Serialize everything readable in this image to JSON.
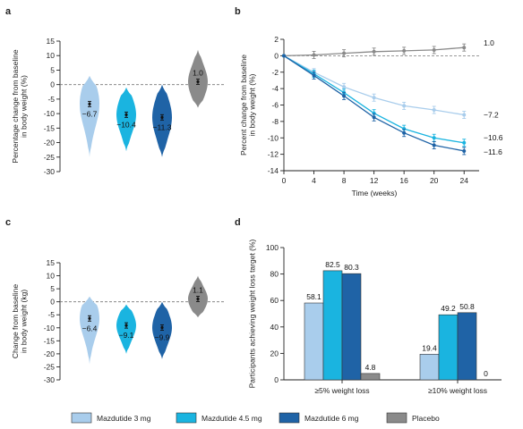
{
  "panels": {
    "a": "a",
    "b": "b",
    "c": "c",
    "d": "d"
  },
  "series": [
    {
      "name": "Mazdutide 3 mg",
      "color": "#a9cdec"
    },
    {
      "name": "Mazdutide 4.5 mg",
      "color": "#1ab4e0"
    },
    {
      "name": "Mazdutide 6 mg",
      "color": "#1f63a6"
    },
    {
      "name": "Placebo",
      "color": "#8a8a8a"
    }
  ],
  "chart_data": [
    {
      "id": "a",
      "type": "violin",
      "ylabel": "Percentage change from baseline in body weight (%)",
      "ylim": [
        -30,
        15
      ],
      "yticks": [
        15,
        10,
        5,
        0,
        -5,
        -10,
        -15,
        -20,
        -25,
        -30
      ],
      "reference_line": 0,
      "groups": [
        {
          "series": "Mazdutide 3 mg",
          "mean": -6.7,
          "label": "−6.7",
          "range": [
            -25,
            3
          ]
        },
        {
          "series": "Mazdutide 4.5 mg",
          "mean": -10.4,
          "label": "−10.4",
          "range": [
            -23,
            -1
          ]
        },
        {
          "series": "Mazdutide 6 mg",
          "mean": -11.3,
          "label": "−11.3",
          "range": [
            -25,
            0
          ]
        },
        {
          "series": "Placebo",
          "mean": 1.0,
          "label": "1.0",
          "range": [
            -8,
            12
          ]
        }
      ]
    },
    {
      "id": "b",
      "type": "line",
      "xlabel": "Time  (weeks)",
      "ylabel": "Percent change from baseline in body weight (%)",
      "x": [
        0,
        4,
        8,
        12,
        16,
        20,
        24
      ],
      "xlim": [
        0,
        26
      ],
      "ylim": [
        -14,
        2
      ],
      "yticks": [
        2,
        0,
        -2,
        -4,
        -6,
        -8,
        -10,
        -12,
        -14
      ],
      "reference_line": 0,
      "series": [
        {
          "series": "Placebo",
          "values": [
            0,
            0.1,
            0.3,
            0.5,
            0.6,
            0.7,
            1.0
          ],
          "end_label": "1.0"
        },
        {
          "series": "Mazdutide 3 mg",
          "values": [
            0,
            -2.0,
            -3.8,
            -5.1,
            -6.1,
            -6.6,
            -7.2
          ],
          "end_label": "−7.2"
        },
        {
          "series": "Mazdutide 4.5 mg",
          "values": [
            0,
            -2.2,
            -4.5,
            -7.0,
            -8.9,
            -10.0,
            -10.6
          ],
          "end_label": "−10.6"
        },
        {
          "series": "Mazdutide 6 mg",
          "values": [
            0,
            -2.4,
            -4.9,
            -7.5,
            -9.4,
            -10.9,
            -11.6
          ],
          "end_label": "−11.6"
        }
      ]
    },
    {
      "id": "c",
      "type": "violin",
      "ylabel": "Change from baseline in body weight (kg)",
      "ylim": [
        -30,
        15
      ],
      "yticks": [
        15,
        10,
        5,
        0,
        -5,
        -10,
        -15,
        -20,
        -25,
        -30
      ],
      "reference_line": 0,
      "groups": [
        {
          "series": "Mazdutide 3 mg",
          "mean": -6.4,
          "label": "−6.4",
          "range": [
            -24,
            2
          ]
        },
        {
          "series": "Mazdutide 4.5 mg",
          "mean": -9.1,
          "label": "−9.1",
          "range": [
            -20,
            -1
          ]
        },
        {
          "series": "Mazdutide 6 mg",
          "mean": -9.9,
          "label": "−9.9",
          "range": [
            -22,
            0
          ]
        },
        {
          "series": "Placebo",
          "mean": 1.1,
          "label": "1.1",
          "range": [
            -6,
            10
          ]
        }
      ]
    },
    {
      "id": "d",
      "type": "bar",
      "ylabel": "Participants achieving weight loss target (%)",
      "ylim": [
        0,
        100
      ],
      "yticks": [
        100,
        80,
        60,
        40,
        20,
        0
      ],
      "categories": [
        "≥5% weight loss",
        "≥10% weight loss"
      ],
      "series": [
        {
          "series": "Mazdutide 3 mg",
          "values": [
            58.1,
            19.4
          ],
          "labels": [
            "58.1",
            "19.4"
          ]
        },
        {
          "series": "Mazdutide 4.5 mg",
          "values": [
            82.5,
            49.2
          ],
          "labels": [
            "82.5",
            "49.2"
          ]
        },
        {
          "series": "Mazdutide 6 mg",
          "values": [
            80.3,
            50.8
          ],
          "labels": [
            "80.3",
            "50.8"
          ]
        },
        {
          "series": "Placebo",
          "values": [
            4.8,
            0
          ],
          "labels": [
            "4.8",
            "0"
          ]
        }
      ]
    }
  ]
}
